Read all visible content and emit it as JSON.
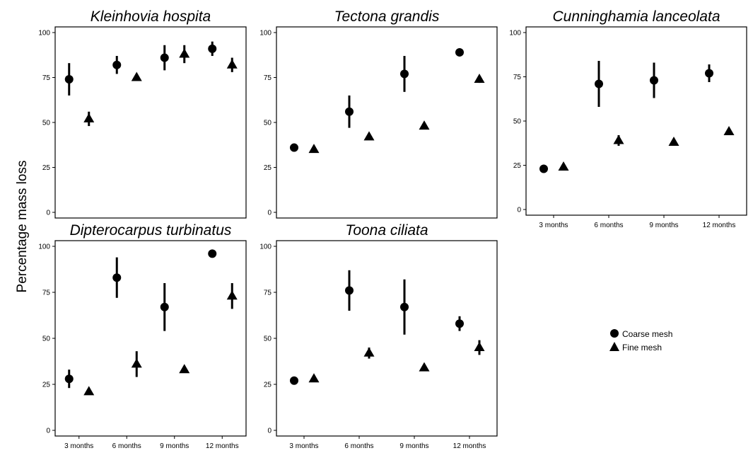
{
  "figure": {
    "ylabel": "Percentage mass loss",
    "legend": {
      "placement": "lower-right",
      "entries": [
        {
          "name": "Coarse mesh",
          "shape": "circle"
        },
        {
          "name": "Fine mesh",
          "shape": "triangle"
        }
      ]
    }
  },
  "chart_data": [
    {
      "type": "scatter",
      "title": "Kleinhovia hospita",
      "categories": [
        "3 months",
        "6 months",
        "9 months",
        "12 months"
      ],
      "show_x_ticks": false,
      "ylim": [
        0,
        100
      ],
      "yticks": [
        0,
        25,
        50,
        75,
        100
      ],
      "grid": false,
      "series": [
        {
          "name": "Coarse mesh",
          "values": [
            74,
            82,
            86,
            91
          ],
          "errors": [
            9,
            5,
            7,
            4
          ]
        },
        {
          "name": "Fine mesh",
          "values": [
            52,
            75,
            88,
            82
          ],
          "errors": [
            4,
            1,
            5,
            4
          ]
        }
      ]
    },
    {
      "type": "scatter",
      "title": "Tectona grandis",
      "categories": [
        "3 months",
        "6 months",
        "9 months",
        "12 months"
      ],
      "show_x_ticks": false,
      "ylim": [
        0,
        100
      ],
      "yticks": [
        0,
        25,
        50,
        75,
        100
      ],
      "grid": false,
      "series": [
        {
          "name": "Coarse mesh",
          "values": [
            36,
            56,
            77,
            89
          ],
          "errors": [
            1,
            9,
            10,
            1
          ]
        },
        {
          "name": "Fine mesh",
          "values": [
            35,
            42,
            48,
            74
          ],
          "errors": [
            1,
            1,
            1,
            2
          ]
        }
      ]
    },
    {
      "type": "scatter",
      "title": "Cunninghamia lanceolata",
      "categories": [
        "3 months",
        "6 months",
        "9 months",
        "12 months"
      ],
      "show_x_ticks": true,
      "ylim": [
        0,
        100
      ],
      "yticks": [
        0,
        25,
        50,
        75,
        100
      ],
      "grid": false,
      "series": [
        {
          "name": "Coarse mesh",
          "values": [
            23,
            71,
            73,
            77
          ],
          "errors": [
            1,
            13,
            10,
            5
          ]
        },
        {
          "name": "Fine mesh",
          "values": [
            24,
            39,
            38,
            44
          ],
          "errors": [
            1,
            3,
            1,
            2
          ]
        }
      ]
    },
    {
      "type": "scatter",
      "title": "Dipterocarpus turbinatus",
      "categories": [
        "3 months",
        "6 months",
        "9 months",
        "12 months"
      ],
      "show_x_ticks": true,
      "ylim": [
        0,
        100
      ],
      "yticks": [
        0,
        25,
        50,
        75,
        100
      ],
      "grid": false,
      "series": [
        {
          "name": "Coarse mesh",
          "values": [
            28,
            83,
            67,
            96
          ],
          "errors": [
            5,
            11,
            13,
            1
          ]
        },
        {
          "name": "Fine mesh",
          "values": [
            21,
            36,
            33,
            73
          ],
          "errors": [
            1,
            7,
            1,
            7
          ]
        }
      ]
    },
    {
      "type": "scatter",
      "title": "Toona ciliata",
      "categories": [
        "3 months",
        "6 months",
        "9 months",
        "12 months"
      ],
      "show_x_ticks": true,
      "ylim": [
        0,
        100
      ],
      "yticks": [
        0,
        25,
        50,
        75,
        100
      ],
      "grid": false,
      "series": [
        {
          "name": "Coarse mesh",
          "values": [
            27,
            76,
            67,
            58
          ],
          "errors": [
            1,
            11,
            15,
            4
          ]
        },
        {
          "name": "Fine mesh",
          "values": [
            28,
            42,
            34,
            45
          ],
          "errors": [
            1,
            3,
            1,
            4
          ]
        }
      ]
    }
  ]
}
